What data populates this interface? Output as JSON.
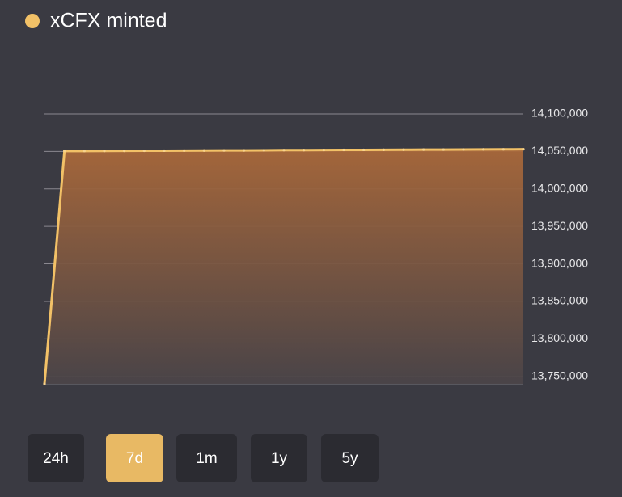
{
  "chart_data": {
    "type": "area",
    "categories": [
      null,
      null,
      null,
      null,
      null,
      null,
      null,
      null,
      null,
      null,
      null,
      null,
      null,
      null,
      null,
      null,
      null,
      null,
      null,
      null,
      null,
      null,
      null,
      null,
      null
    ],
    "series": [
      {
        "name": "xCFX minted",
        "color": "#f2c167",
        "values": [
          13740000,
          14050500,
          14050600,
          14050700,
          14050800,
          14050900,
          14051000,
          14051100,
          14051200,
          14051300,
          14051400,
          14051500,
          14051700,
          14051800,
          14051900,
          14052000,
          14052100,
          14052200,
          14052300,
          14052400,
          14052500,
          14052600,
          14052700,
          14052800,
          14053000
        ]
      }
    ],
    "ylim": [
      13740000,
      14100000
    ],
    "yticks": [
      {
        "value": 13750000,
        "label": "13,750,000"
      },
      {
        "value": 13800000,
        "label": "13,800,000"
      },
      {
        "value": 13850000,
        "label": "13,850,000"
      },
      {
        "value": 13900000,
        "label": "13,900,000"
      },
      {
        "value": 13950000,
        "label": "13,950,000"
      },
      {
        "value": 14000000,
        "label": "14,000,000"
      },
      {
        "value": 14050000,
        "label": "14,050,000"
      },
      {
        "value": 14100000,
        "label": "14,100,000"
      }
    ],
    "grid": true
  },
  "buttons": [
    "24h",
    "7d",
    "1m",
    "1y",
    "5y"
  ],
  "selected": 1
}
